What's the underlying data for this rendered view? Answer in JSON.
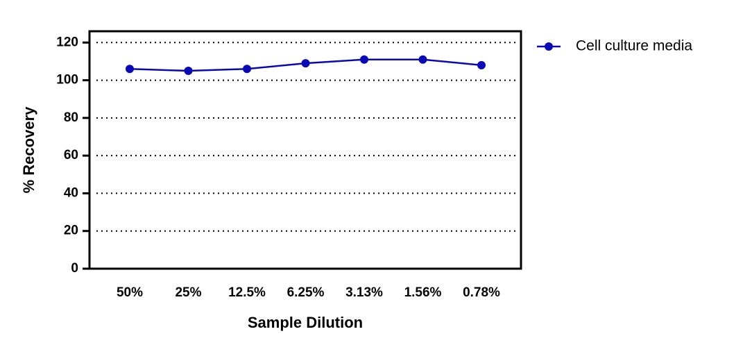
{
  "chart_data": {
    "type": "line",
    "xlabel": "Sample Dilution",
    "ylabel": "% Recovery",
    "categories": [
      "50%",
      "25%",
      "12.5%",
      "6.25%",
      "3.13%",
      "1.56%",
      "0.78%"
    ],
    "series": [
      {
        "name": "Cell culture media",
        "color": "#0a0ab4",
        "values": [
          106,
          105,
          106,
          109,
          111,
          111,
          108
        ]
      }
    ],
    "ylim": [
      0,
      126
    ],
    "yticks": [
      0,
      20,
      40,
      60,
      80,
      100,
      120
    ],
    "grid": true,
    "legend": "right"
  }
}
